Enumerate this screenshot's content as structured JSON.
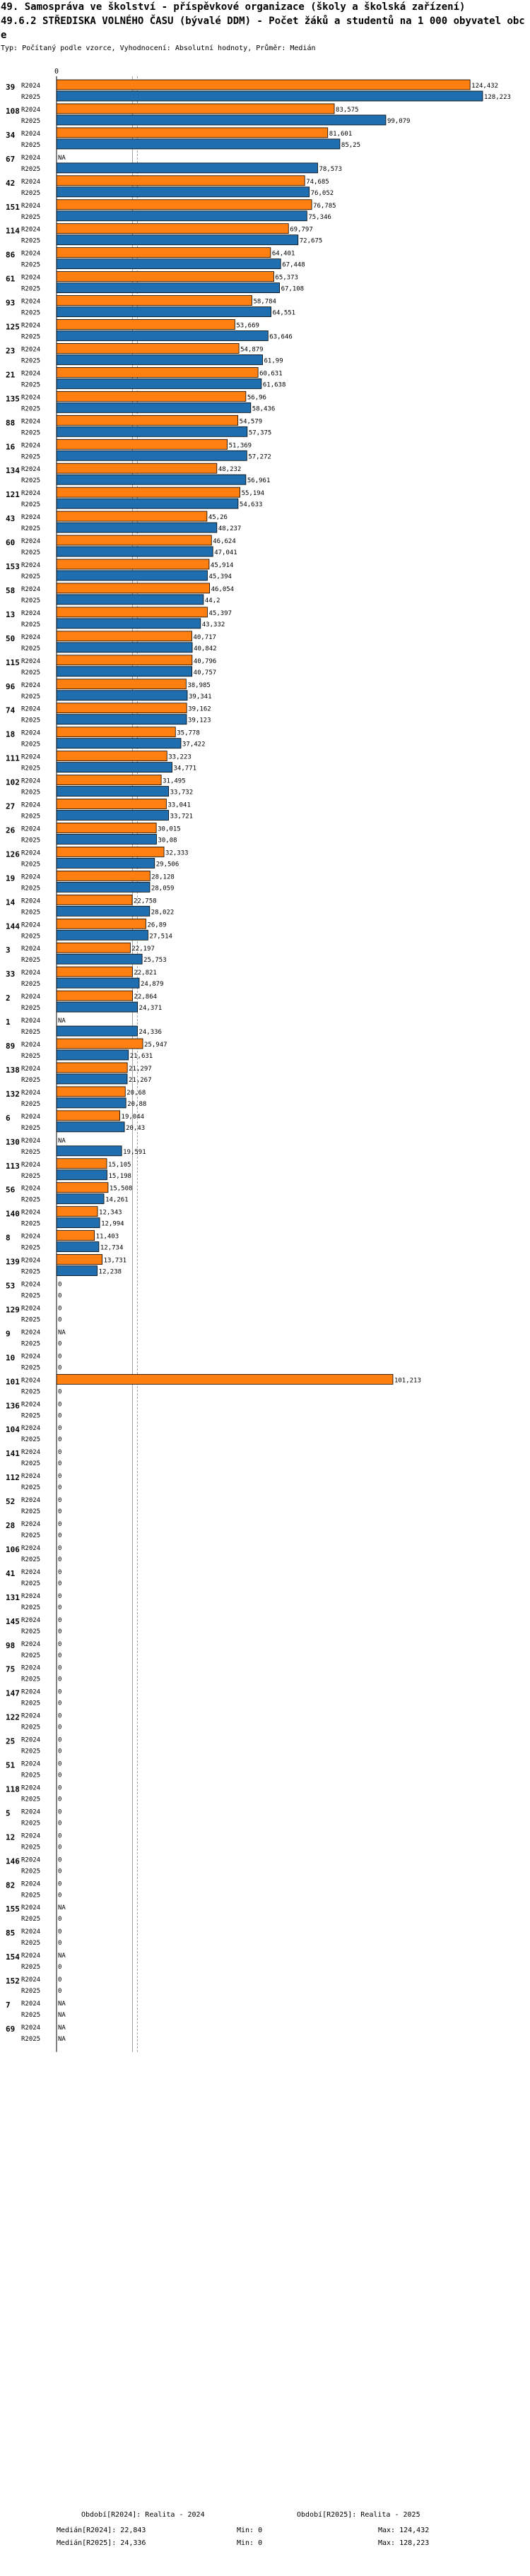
{
  "header": {
    "title": "49. Samospráva ve školství - příspěvkové organizace (školy a školská zařízení)",
    "subtitle": "49.6.2 STŘEDISKA VOLNÉHO ČASU (bývalé DDM) - Počet žáků a studentů na 1 000 obyvatel obce",
    "info": "Typ: Počítaný podle vzorce, Vyhodnocení: Absolutní hodnoty, Průměr: Medián"
  },
  "chart_data": {
    "type": "bar",
    "orientation": "horizontal",
    "axis_zero_label": "0",
    "series_names": [
      "R2024",
      "R2025"
    ],
    "colors": {
      "R2024": "#ff8010",
      "R2025": "#1f6fb0"
    },
    "xlim": [
      0,
      128.223
    ],
    "median_R2024": 22.843,
    "median_R2025": 24.336,
    "groups": [
      {
        "id": "39",
        "r2024": 124.432,
        "r2025": 128.223,
        "l2024": "124,432",
        "l2025": "128,223"
      },
      {
        "id": "108",
        "r2024": 83.575,
        "r2025": 99.079,
        "l2024": "83,575",
        "l2025": "99,079"
      },
      {
        "id": "34",
        "r2024": 81.601,
        "r2025": 85.25,
        "l2024": "81,601",
        "l2025": "85,25"
      },
      {
        "id": "67",
        "r2024": null,
        "r2025": 78.573,
        "l2024": "NA",
        "l2025": "78,573"
      },
      {
        "id": "42",
        "r2024": 74.685,
        "r2025": 76.052,
        "l2024": "74,685",
        "l2025": "76,052"
      },
      {
        "id": "151",
        "r2024": 76.785,
        "r2025": 75.346,
        "l2024": "76,785",
        "l2025": "75,346"
      },
      {
        "id": "114",
        "r2024": 69.797,
        "r2025": 72.675,
        "l2024": "69,797",
        "l2025": "72,675"
      },
      {
        "id": "86",
        "r2024": 64.401,
        "r2025": 67.448,
        "l2024": "64,401",
        "l2025": "67,448"
      },
      {
        "id": "61",
        "r2024": 65.373,
        "r2025": 67.108,
        "l2024": "65,373",
        "l2025": "67,108"
      },
      {
        "id": "93",
        "r2024": 58.784,
        "r2025": 64.551,
        "l2024": "58,784",
        "l2025": "64,551"
      },
      {
        "id": "125",
        "r2024": 53.669,
        "r2025": 63.646,
        "l2024": "53,669",
        "l2025": "63,646"
      },
      {
        "id": "23",
        "r2024": 54.879,
        "r2025": 61.99,
        "l2024": "54,879",
        "l2025": "61,99"
      },
      {
        "id": "21",
        "r2024": 60.631,
        "r2025": 61.638,
        "l2024": "60,631",
        "l2025": "61,638"
      },
      {
        "id": "135",
        "r2024": 56.96,
        "r2025": 58.436,
        "l2024": "56,96",
        "l2025": "58,436"
      },
      {
        "id": "88",
        "r2024": 54.579,
        "r2025": 57.375,
        "l2024": "54,579",
        "l2025": "57,375"
      },
      {
        "id": "16",
        "r2024": 51.369,
        "r2025": 57.272,
        "l2024": "51,369",
        "l2025": "57,272"
      },
      {
        "id": "134",
        "r2024": 48.232,
        "r2025": 56.961,
        "l2024": "48,232",
        "l2025": "56,961"
      },
      {
        "id": "121",
        "r2024": 55.194,
        "r2025": 54.633,
        "l2024": "55,194",
        "l2025": "54,633"
      },
      {
        "id": "43",
        "r2024": 45.26,
        "r2025": 48.237,
        "l2024": "45,26",
        "l2025": "48,237"
      },
      {
        "id": "60",
        "r2024": 46.624,
        "r2025": 47.041,
        "l2024": "46,624",
        "l2025": "47,041"
      },
      {
        "id": "153",
        "r2024": 45.914,
        "r2025": 45.394,
        "l2024": "45,914",
        "l2025": "45,394"
      },
      {
        "id": "58",
        "r2024": 46.054,
        "r2025": 44.2,
        "l2024": "46,054",
        "l2025": "44,2"
      },
      {
        "id": "13",
        "r2024": 45.397,
        "r2025": 43.332,
        "l2024": "45,397",
        "l2025": "43,332"
      },
      {
        "id": "50",
        "r2024": 40.717,
        "r2025": 40.842,
        "l2024": "40,717",
        "l2025": "40,842"
      },
      {
        "id": "115",
        "r2024": 40.796,
        "r2025": 40.757,
        "l2024": "40,796",
        "l2025": "40,757"
      },
      {
        "id": "96",
        "r2024": 38.985,
        "r2025": 39.341,
        "l2024": "38,985",
        "l2025": "39,341"
      },
      {
        "id": "74",
        "r2024": 39.162,
        "r2025": 39.123,
        "l2024": "39,162",
        "l2025": "39,123"
      },
      {
        "id": "18",
        "r2024": 35.778,
        "r2025": 37.422,
        "l2024": "35,778",
        "l2025": "37,422"
      },
      {
        "id": "111",
        "r2024": 33.223,
        "r2025": 34.771,
        "l2024": "33,223",
        "l2025": "34,771"
      },
      {
        "id": "102",
        "r2024": 31.495,
        "r2025": 33.732,
        "l2024": "31,495",
        "l2025": "33,732"
      },
      {
        "id": "27",
        "r2024": 33.041,
        "r2025": 33.721,
        "l2024": "33,041",
        "l2025": "33,721"
      },
      {
        "id": "26",
        "r2024": 30.015,
        "r2025": 30.08,
        "l2024": "30,015",
        "l2025": "30,08"
      },
      {
        "id": "126",
        "r2024": 32.333,
        "r2025": 29.506,
        "l2024": "32,333",
        "l2025": "29,506"
      },
      {
        "id": "19",
        "r2024": 28.128,
        "r2025": 28.059,
        "l2024": "28,128",
        "l2025": "28,059"
      },
      {
        "id": "14",
        "r2024": 22.758,
        "r2025": 28.022,
        "l2024": "22,758",
        "l2025": "28,022"
      },
      {
        "id": "144",
        "r2024": 26.89,
        "r2025": 27.514,
        "l2024": "26,89",
        "l2025": "27,514"
      },
      {
        "id": "3",
        "r2024": 22.197,
        "r2025": 25.753,
        "l2024": "22,197",
        "l2025": "25,753"
      },
      {
        "id": "33",
        "r2024": 22.821,
        "r2025": 24.879,
        "l2024": "22,821",
        "l2025": "24,879"
      },
      {
        "id": "2",
        "r2024": 22.864,
        "r2025": 24.371,
        "l2024": "22,864",
        "l2025": "24,371"
      },
      {
        "id": "1",
        "r2024": null,
        "r2025": 24.336,
        "l2024": "NA",
        "l2025": "24,336"
      },
      {
        "id": "89",
        "r2024": 25.947,
        "r2025": 21.631,
        "l2024": "25,947",
        "l2025": "21,631"
      },
      {
        "id": "138",
        "r2024": 21.297,
        "r2025": 21.267,
        "l2024": "21,297",
        "l2025": "21,267"
      },
      {
        "id": "132",
        "r2024": 20.68,
        "r2025": 20.88,
        "l2024": "20,68",
        "l2025": "20,88"
      },
      {
        "id": "6",
        "r2024": 19.044,
        "r2025": 20.43,
        "l2024": "19,044",
        "l2025": "20,43"
      },
      {
        "id": "130",
        "r2024": null,
        "r2025": 19.591,
        "l2024": "NA",
        "l2025": "19,591"
      },
      {
        "id": "113",
        "r2024": 15.105,
        "r2025": 15.198,
        "l2024": "15,105",
        "l2025": "15,198"
      },
      {
        "id": "56",
        "r2024": 15.508,
        "r2025": 14.261,
        "l2024": "15,508",
        "l2025": "14,261"
      },
      {
        "id": "140",
        "r2024": 12.343,
        "r2025": 12.994,
        "l2024": "12,343",
        "l2025": "12,994"
      },
      {
        "id": "8",
        "r2024": 11.403,
        "r2025": 12.734,
        "l2024": "11,403",
        "l2025": "12,734"
      },
      {
        "id": "139",
        "r2024": 13.731,
        "r2025": 12.238,
        "l2024": "13,731",
        "l2025": "12,238"
      },
      {
        "id": "53",
        "r2024": 0,
        "r2025": 0,
        "l2024": "0",
        "l2025": "0"
      },
      {
        "id": "129",
        "r2024": 0,
        "r2025": 0,
        "l2024": "0",
        "l2025": "0"
      },
      {
        "id": "9",
        "r2024": null,
        "r2025": 0,
        "l2024": "NA",
        "l2025": "0"
      },
      {
        "id": "10",
        "r2024": 0,
        "r2025": 0,
        "l2024": "0",
        "l2025": "0"
      },
      {
        "id": "101",
        "r2024": 101.213,
        "r2025": 0,
        "l2024": "101,213",
        "l2025": "0"
      },
      {
        "id": "136",
        "r2024": 0,
        "r2025": 0,
        "l2024": "0",
        "l2025": "0"
      },
      {
        "id": "104",
        "r2024": 0,
        "r2025": 0,
        "l2024": "0",
        "l2025": "0"
      },
      {
        "id": "141",
        "r2024": 0,
        "r2025": 0,
        "l2024": "0",
        "l2025": "0"
      },
      {
        "id": "112",
        "r2024": 0,
        "r2025": 0,
        "l2024": "0",
        "l2025": "0"
      },
      {
        "id": "52",
        "r2024": 0,
        "r2025": 0,
        "l2024": "0",
        "l2025": "0"
      },
      {
        "id": "28",
        "r2024": 0,
        "r2025": 0,
        "l2024": "0",
        "l2025": "0"
      },
      {
        "id": "106",
        "r2024": 0,
        "r2025": 0,
        "l2024": "0",
        "l2025": "0"
      },
      {
        "id": "41",
        "r2024": 0,
        "r2025": 0,
        "l2024": "0",
        "l2025": "0"
      },
      {
        "id": "131",
        "r2024": 0,
        "r2025": 0,
        "l2024": "0",
        "l2025": "0"
      },
      {
        "id": "145",
        "r2024": 0,
        "r2025": 0,
        "l2024": "0",
        "l2025": "0"
      },
      {
        "id": "98",
        "r2024": 0,
        "r2025": 0,
        "l2024": "0",
        "l2025": "0"
      },
      {
        "id": "75",
        "r2024": 0,
        "r2025": 0,
        "l2024": "0",
        "l2025": "0"
      },
      {
        "id": "147",
        "r2024": 0,
        "r2025": 0,
        "l2024": "0",
        "l2025": "0"
      },
      {
        "id": "122",
        "r2024": 0,
        "r2025": 0,
        "l2024": "0",
        "l2025": "0"
      },
      {
        "id": "25",
        "r2024": 0,
        "r2025": 0,
        "l2024": "0",
        "l2025": "0"
      },
      {
        "id": "51",
        "r2024": 0,
        "r2025": 0,
        "l2024": "0",
        "l2025": "0"
      },
      {
        "id": "118",
        "r2024": 0,
        "r2025": 0,
        "l2024": "0",
        "l2025": "0"
      },
      {
        "id": "5",
        "r2024": 0,
        "r2025": 0,
        "l2024": "0",
        "l2025": "0"
      },
      {
        "id": "12",
        "r2024": 0,
        "r2025": 0,
        "l2024": "0",
        "l2025": "0"
      },
      {
        "id": "146",
        "r2024": 0,
        "r2025": 0,
        "l2024": "0",
        "l2025": "0"
      },
      {
        "id": "82",
        "r2024": 0,
        "r2025": 0,
        "l2024": "0",
        "l2025": "0"
      },
      {
        "id": "155",
        "r2024": null,
        "r2025": 0,
        "l2024": "NA",
        "l2025": "0"
      },
      {
        "id": "85",
        "r2024": 0,
        "r2025": 0,
        "l2024": "0",
        "l2025": "0"
      },
      {
        "id": "154",
        "r2024": null,
        "r2025": 0,
        "l2024": "NA",
        "l2025": "0"
      },
      {
        "id": "152",
        "r2024": 0,
        "r2025": 0,
        "l2024": "0",
        "l2025": "0"
      },
      {
        "id": "7",
        "r2024": null,
        "r2025": null,
        "l2024": "NA",
        "l2025": "NA"
      },
      {
        "id": "69",
        "r2024": null,
        "r2025": null,
        "l2024": "NA",
        "l2025": "NA"
      }
    ]
  },
  "footer": {
    "period1": "Období[R2024]: Realita - 2024",
    "period2": "Období[R2025]: Realita - 2025",
    "median1": "Medián[R2024]: 22,843",
    "median2": "Medián[R2025]: 24,336",
    "min1": "Min: 0",
    "min2": "Min: 0",
    "max1": "Max: 124,432",
    "max2": "Max: 128,223"
  }
}
